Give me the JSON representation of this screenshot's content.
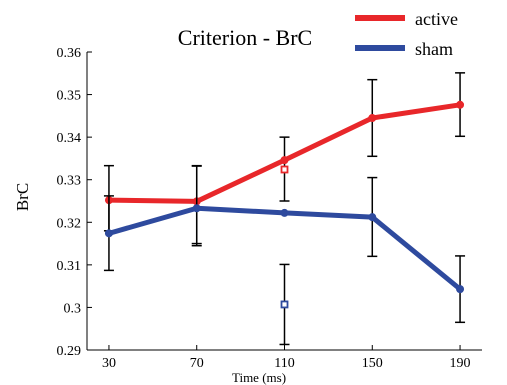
{
  "chart_data": {
    "type": "line",
    "title": "Criterion - BrC",
    "xlabel": "Time (ms)",
    "ylabel": "BrC",
    "xlim": [
      20,
      200
    ],
    "ylim": [
      0.29,
      0.36
    ],
    "xticks": [
      30,
      70,
      110,
      150,
      190
    ],
    "xtick_labels": [
      "30",
      "70",
      "110",
      "150",
      "190"
    ],
    "yticks": [
      0.29,
      0.3,
      0.31,
      0.32,
      0.33,
      0.34,
      0.35,
      0.36
    ],
    "ytick_labels": [
      "0.29",
      "0.3",
      "0.31",
      "0.32",
      "0.33",
      "0.34",
      "0.35",
      "0.36"
    ],
    "grid": false,
    "legend_position": "top-right",
    "series": [
      {
        "name": "active",
        "color": "#e8272a",
        "x": [
          30,
          70,
          110,
          150,
          190
        ],
        "y": [
          0.3252,
          0.3249,
          0.3346,
          0.3445,
          0.3476
        ],
        "err_low": [
          0.318,
          0.315,
          0.325,
          0.3355,
          0.3402
        ],
        "err_high": [
          0.3333,
          0.3332,
          0.34,
          0.3535,
          0.3551
        ]
      },
      {
        "name": "sham",
        "color": "#2e4a9e",
        "x": [
          30,
          70,
          110,
          150,
          190
        ],
        "y": [
          0.3174,
          0.3233,
          0.3222,
          0.3212,
          0.3043
        ],
        "err_low": [
          0.3087,
          0.3145,
          null,
          0.312,
          0.2965
        ],
        "err_high": [
          0.3262,
          0.3333,
          null,
          0.3305,
          0.3121
        ]
      }
    ],
    "markers": [
      {
        "series": "active",
        "x": 110,
        "y": 0.3324,
        "shape": "square"
      },
      {
        "series": "sham",
        "x": 110,
        "y": 0.3007,
        "shape": "square",
        "err_low": 0.2913,
        "err_high": 0.3101
      }
    ]
  }
}
